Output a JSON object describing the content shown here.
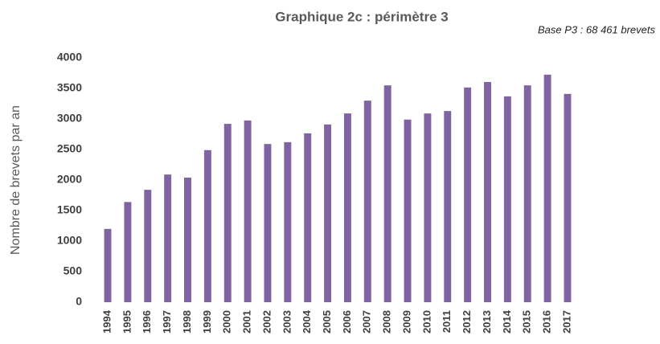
{
  "chart_data": {
    "type": "bar",
    "title": "Graphique 2c : périmètre 3",
    "annotation": "Base P3 : 68 461 brevets",
    "ylabel": "Nombre de brevets par an",
    "categories": [
      "1994",
      "1995",
      "1996",
      "1997",
      "1998",
      "1999",
      "2000",
      "2001",
      "2002",
      "2003",
      "2004",
      "2005",
      "2006",
      "2007",
      "2008",
      "2009",
      "2010",
      "2011",
      "2012",
      "2013",
      "2014",
      "2015",
      "2016",
      "2017"
    ],
    "values": [
      1200,
      1640,
      1840,
      2090,
      2040,
      2490,
      2920,
      2975,
      2590,
      2620,
      2765,
      2910,
      3090,
      3300,
      3550,
      2990,
      3090,
      3130,
      3515,
      3605,
      3370,
      3550,
      3725,
      3410
    ],
    "color": "#8064a2",
    "ylim": [
      0,
      4000
    ],
    "yticks": [
      0,
      500,
      1000,
      1500,
      2000,
      2500,
      3000,
      3500,
      4000
    ],
    "grid": false
  }
}
